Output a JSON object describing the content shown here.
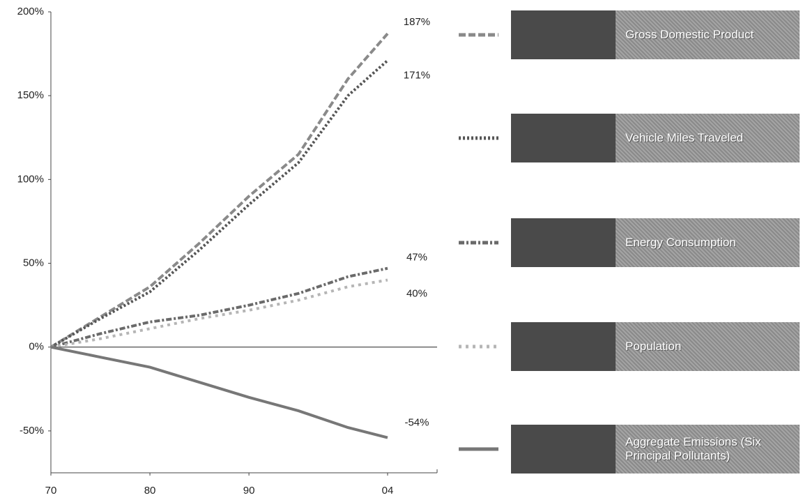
{
  "chart_data": {
    "type": "line",
    "x": [
      1970,
      1975,
      1980,
      1985,
      1990,
      1995,
      2000,
      2004
    ],
    "xlim": [
      1970,
      2009
    ],
    "xticks": [
      {
        "value": 1970,
        "label": "70"
      },
      {
        "value": 1980,
        "label": "80"
      },
      {
        "value": 1990,
        "label": "90"
      },
      {
        "value": 2004,
        "label": "04"
      }
    ],
    "ylim": [
      -75,
      200
    ],
    "yticks": [
      {
        "value": -50,
        "label": "-50%"
      },
      {
        "value": 0,
        "label": "0%"
      },
      {
        "value": 50,
        "label": "50%"
      },
      {
        "value": 100,
        "label": "100%"
      },
      {
        "value": 150,
        "label": "150%"
      },
      {
        "value": 200,
        "label": "200%"
      }
    ],
    "series": [
      {
        "name": "Gross Domestic Product",
        "color": "#8a8a8a",
        "dash": "10 4",
        "values": [
          0,
          18,
          36,
          62,
          90,
          115,
          160,
          187
        ],
        "value_labels": [
          null,
          null,
          null,
          null,
          null,
          null,
          null,
          "187%"
        ]
      },
      {
        "name": "Vehicle Miles Traveled",
        "color": "#555555",
        "dash": "3 3",
        "values": [
          0,
          17,
          33,
          58,
          85,
          110,
          150,
          171
        ],
        "value_labels": [
          null,
          null,
          null,
          null,
          null,
          null,
          null,
          "171%"
        ]
      },
      {
        "name": "Energy Consumption",
        "color": "#6a6a6a",
        "dash": "8 3 3 3",
        "values": [
          0,
          8,
          15,
          19,
          25,
          32,
          42,
          47
        ],
        "value_labels": [
          null,
          null,
          null,
          null,
          null,
          null,
          null,
          "47%"
        ]
      },
      {
        "name": "Population",
        "color": "#b5b5b5",
        "dash": "4 6",
        "values": [
          0,
          5,
          11,
          17,
          22,
          28,
          36,
          40
        ],
        "value_labels": [
          null,
          null,
          null,
          null,
          null,
          null,
          null,
          "40%"
        ]
      },
      {
        "name": "Aggregate Emissions (Six Principal Pollutants)",
        "color": "#777777",
        "dash": "none",
        "values": [
          0,
          -6,
          -12,
          -21,
          -30,
          -38,
          -48,
          -54
        ],
        "value_labels": [
          null,
          null,
          null,
          null,
          null,
          null,
          null,
          "-54%"
        ]
      }
    ]
  }
}
